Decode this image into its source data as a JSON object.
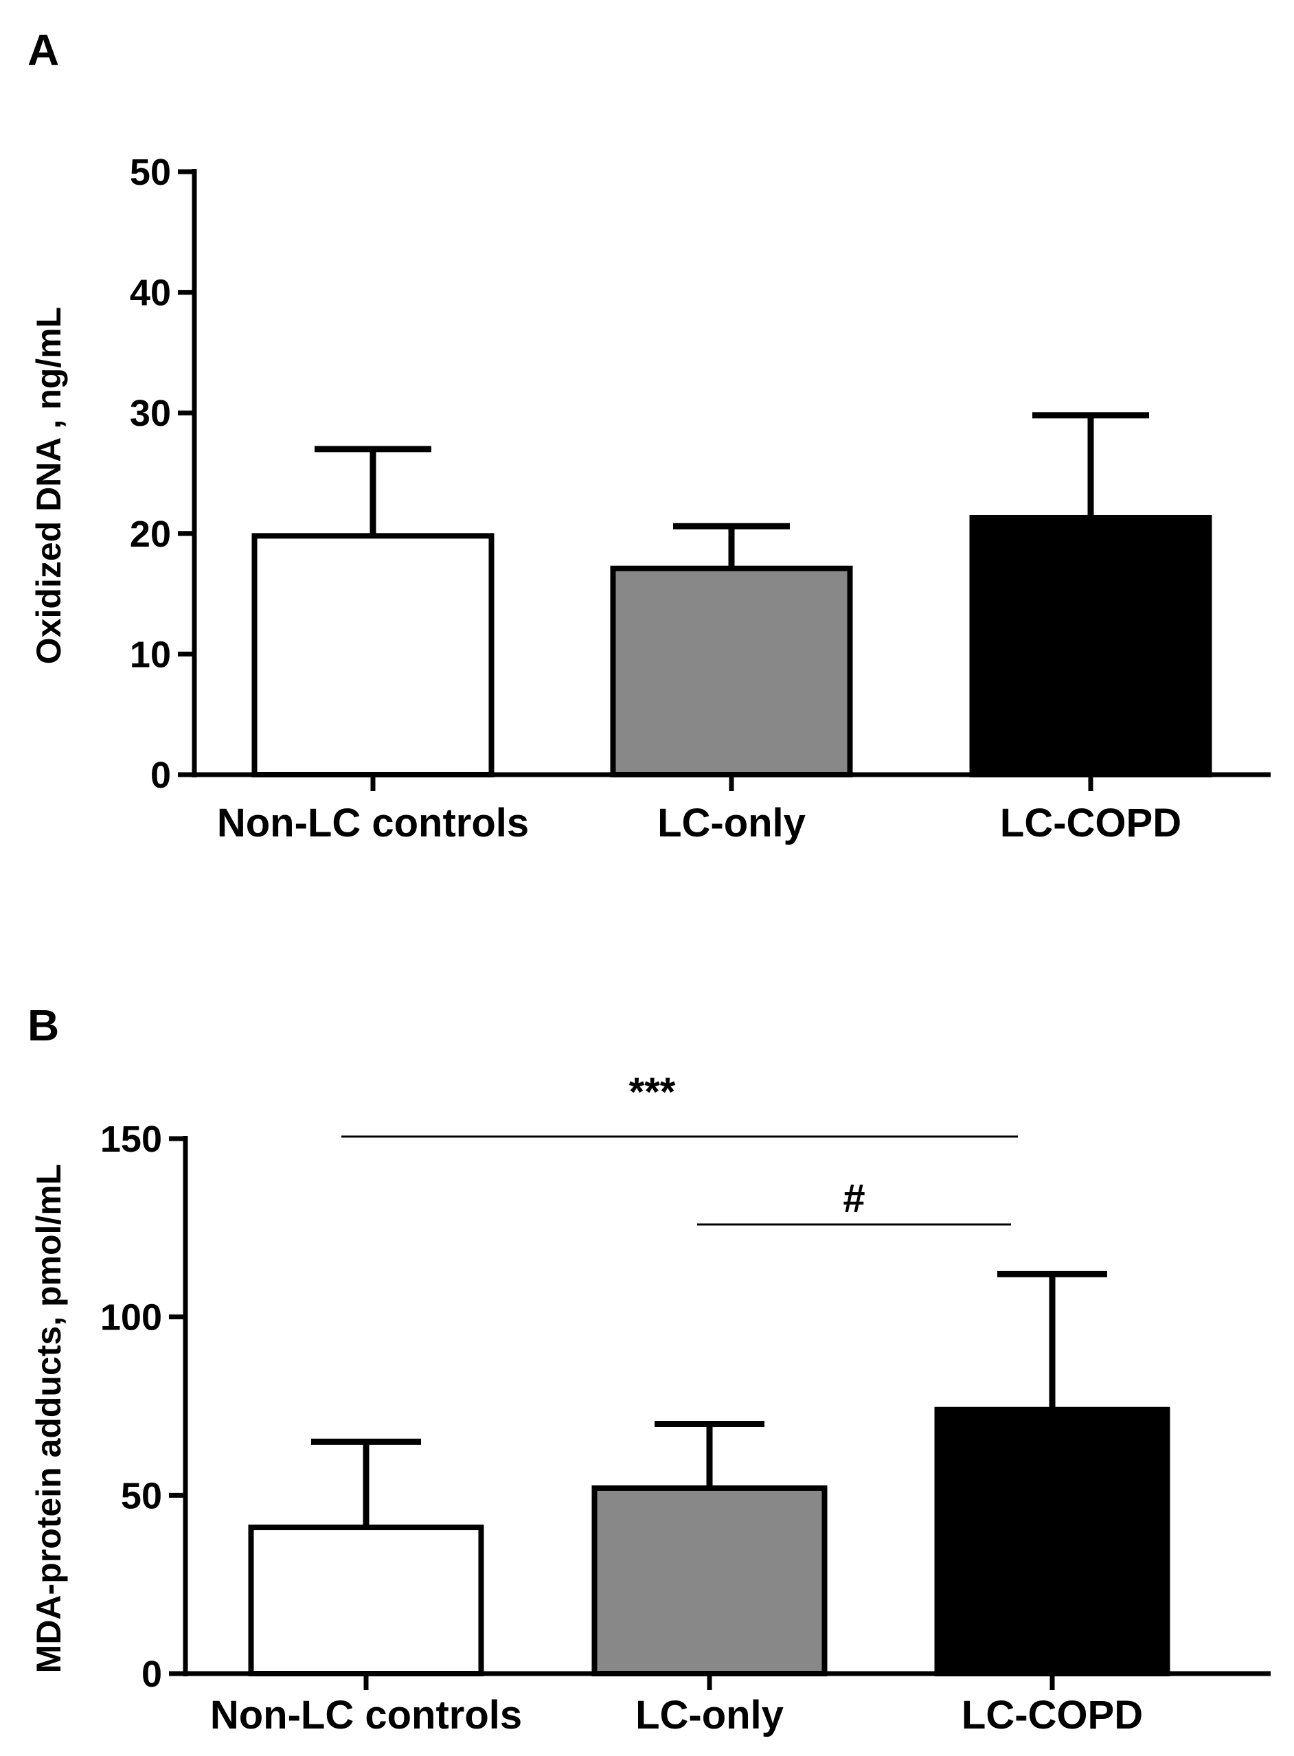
{
  "chart_data": [
    {
      "panel": "A",
      "type": "bar",
      "categories": [
        "Non-LC controls",
        "LC-only",
        "LC-COPD"
      ],
      "values": [
        19.8,
        17.1,
        21.3
      ],
      "errors": [
        7.2,
        3.5,
        8.5
      ],
      "ylabel": "Oxidized DNA , ng/mL",
      "ylim": [
        0,
        50
      ],
      "yticks": [
        "0",
        "10",
        "20",
        "30",
        "40",
        "50"
      ],
      "bar_colors": [
        "#ffffff",
        "#888888",
        "#000000"
      ],
      "grid": false,
      "annotations": []
    },
    {
      "panel": "B",
      "type": "bar",
      "categories": [
        "Non-LC controls",
        "LC-only",
        "LC-COPD"
      ],
      "values": [
        41,
        52,
        74
      ],
      "errors": [
        24,
        18,
        38
      ],
      "ylabel": "MDA-protein adducts, pmol/mL",
      "ylim": [
        0,
        150
      ],
      "yticks": [
        "0",
        "50",
        "100",
        "150"
      ],
      "bar_colors": [
        "#ffffff",
        "#888888",
        "#000000"
      ],
      "grid": false,
      "annotations": [
        {
          "label": "***",
          "from": "Non-LC controls",
          "to": "LC-COPD"
        },
        {
          "label": "#",
          "from": "LC-only",
          "to": "LC-COPD"
        }
      ]
    }
  ]
}
